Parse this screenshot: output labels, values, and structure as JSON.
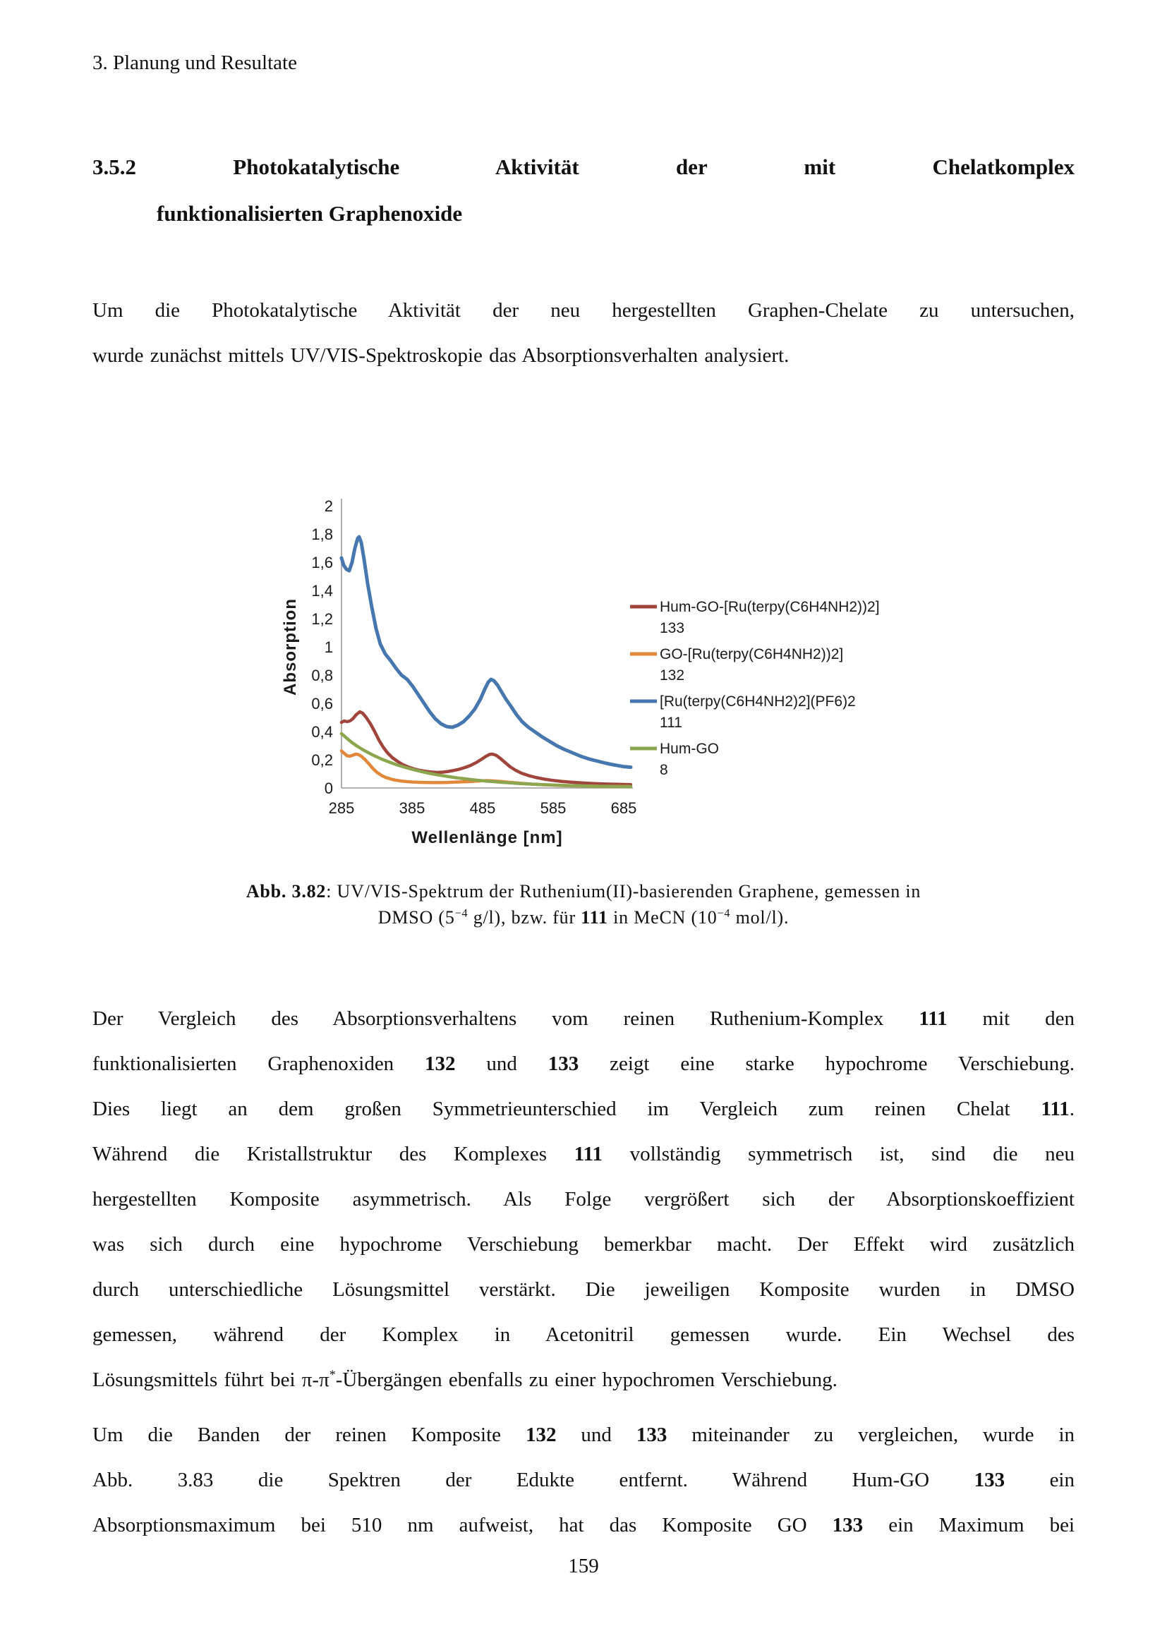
{
  "header": {
    "text": "3. Planung und Resultate"
  },
  "heading": {
    "line1": "3.5.2 Photokatalytische Aktivität der mit Chelatkomplex",
    "line2": "funktionalisierten Graphenoxide"
  },
  "intro": {
    "lines": [
      "Um die Photokatalytische Aktivität der neu hergestellten Graphen-Chelate zu untersuchen,",
      "wurde zunächst mittels UV/VIS-Spektroskopie das Absorptionsverhalten analysiert."
    ]
  },
  "caption": {
    "lines": [
      "**Abb. 3.82**: UV/VIS-Spektrum der Ruthenium(II)-basierenden Graphene, gemessen in",
      "DMSO (5^−4^ g/l), bzw. für **111** in MeCN (10^−4^ mol/l)."
    ]
  },
  "para1": {
    "lines": [
      "Der Vergleich des Absorptionsverhaltens vom reinen Ruthenium-Komplex **111**  mit  den",
      "funktionalisierten Graphenoxiden **132** und **133** zeigt eine starke hypochrome Verschiebung.",
      "Dies liegt an dem großen Symmetrieunterschied im Vergleich zum reinen Chelat **111**.",
      "Während die Kristallstruktur des Komplexes **111** vollständig symmetrisch ist, sind die neu",
      "hergestellten Komposite asymmetrisch. Als Folge vergrößert sich der Absorptionskoeffizient",
      "was sich durch eine hypochrome Verschiebung bemerkbar macht. Der Effekt wird zusätzlich",
      "durch unterschiedliche Lösungsmittel verstärkt. Die jeweiligen Komposite wurden in DMSO",
      "gemessen, während der Komplex in Acetonitril gemessen wurde. Ein Wechsel des",
      "Lösungsmittels führt bei π-π^*^-Übergängen ebenfalls zu einer hypochromen Verschiebung."
    ]
  },
  "para2": {
    "lines": [
      "Um die Banden der reinen Komposite **132** und **133** miteinander zu vergleichen, wurde in",
      "Abb. 3.83 die Spektren der Edukte entfernt. Während Hum-GO **133** ein",
      "Absorptionsmaximum bei 510 nm aufweist, hat das Komposite GO **133** ein Maximum bei"
    ]
  },
  "footer": {
    "page_number": "159"
  },
  "chart_data": {
    "type": "line",
    "title": "",
    "xlabel": "Wellenlänge [nm]",
    "ylabel": "Absorption",
    "xlim": [
      285,
      695
    ],
    "ylim": [
      0,
      2
    ],
    "grid": false,
    "legend_position": "right",
    "axis_color": "#9a9a9a",
    "xticks": [
      285,
      385,
      485,
      585,
      685
    ],
    "yticks": [
      {
        "value": 0,
        "label": "0"
      },
      {
        "value": 0.2,
        "label": "0,2"
      },
      {
        "value": 0.4,
        "label": "0,4"
      },
      {
        "value": 0.6,
        "label": "0,6"
      },
      {
        "value": 0.8,
        "label": "0,8"
      },
      {
        "value": 1,
        "label": "1"
      },
      {
        "value": 1.2,
        "label": "1,2"
      },
      {
        "value": 1.4,
        "label": "1,4"
      },
      {
        "value": 1.6,
        "label": "1,6"
      },
      {
        "value": 1.8,
        "label": "1,8"
      },
      {
        "value": 2,
        "label": "2"
      }
    ],
    "series": [
      {
        "name": "Hum-GO-[Ru(terpy(C6H4NH2))2]",
        "label2": "133",
        "color": "#A0453C",
        "width": 4.5,
        "points": [
          [
            285,
            0.465
          ],
          [
            289,
            0.475
          ],
          [
            293,
            0.47
          ],
          [
            297,
            0.475
          ],
          [
            301,
            0.49
          ],
          [
            306,
            0.52
          ],
          [
            311,
            0.54
          ],
          [
            315,
            0.53
          ],
          [
            320,
            0.5
          ],
          [
            326,
            0.455
          ],
          [
            332,
            0.4
          ],
          [
            338,
            0.34
          ],
          [
            344,
            0.29
          ],
          [
            350,
            0.25
          ],
          [
            357,
            0.215
          ],
          [
            364,
            0.19
          ],
          [
            372,
            0.165
          ],
          [
            380,
            0.148
          ],
          [
            388,
            0.135
          ],
          [
            396,
            0.125
          ],
          [
            404,
            0.118
          ],
          [
            412,
            0.113
          ],
          [
            420,
            0.11
          ],
          [
            428,
            0.112
          ],
          [
            436,
            0.117
          ],
          [
            444,
            0.124
          ],
          [
            452,
            0.133
          ],
          [
            460,
            0.145
          ],
          [
            468,
            0.16
          ],
          [
            476,
            0.18
          ],
          [
            484,
            0.205
          ],
          [
            490,
            0.225
          ],
          [
            495,
            0.238
          ],
          [
            499,
            0.24
          ],
          [
            504,
            0.232
          ],
          [
            510,
            0.21
          ],
          [
            517,
            0.18
          ],
          [
            524,
            0.15
          ],
          [
            532,
            0.125
          ],
          [
            540,
            0.105
          ],
          [
            550,
            0.088
          ],
          [
            560,
            0.075
          ],
          [
            572,
            0.063
          ],
          [
            584,
            0.054
          ],
          [
            596,
            0.047
          ],
          [
            610,
            0.041
          ],
          [
            625,
            0.036
          ],
          [
            640,
            0.032
          ],
          [
            655,
            0.029
          ],
          [
            670,
            0.027
          ],
          [
            685,
            0.025
          ],
          [
            695,
            0.024
          ]
        ]
      },
      {
        "name": "GO-[Ru(terpy(C6H4NH2))2]",
        "label2": "132",
        "color": "#E2883B",
        "width": 4.5,
        "points": [
          [
            285,
            0.262
          ],
          [
            289,
            0.245
          ],
          [
            293,
            0.228
          ],
          [
            297,
            0.225
          ],
          [
            301,
            0.232
          ],
          [
            305,
            0.24
          ],
          [
            309,
            0.237
          ],
          [
            313,
            0.225
          ],
          [
            318,
            0.203
          ],
          [
            324,
            0.17
          ],
          [
            330,
            0.135
          ],
          [
            336,
            0.108
          ],
          [
            342,
            0.088
          ],
          [
            348,
            0.074
          ],
          [
            355,
            0.063
          ],
          [
            362,
            0.055
          ],
          [
            370,
            0.049
          ],
          [
            378,
            0.045
          ],
          [
            386,
            0.042
          ],
          [
            395,
            0.04
          ],
          [
            405,
            0.039
          ],
          [
            415,
            0.038
          ],
          [
            425,
            0.038
          ],
          [
            435,
            0.039
          ],
          [
            445,
            0.041
          ],
          [
            455,
            0.043
          ],
          [
            465,
            0.045
          ],
          [
            475,
            0.048
          ],
          [
            485,
            0.051
          ],
          [
            492,
            0.052
          ],
          [
            500,
            0.05
          ],
          [
            510,
            0.046
          ],
          [
            520,
            0.041
          ],
          [
            532,
            0.036
          ],
          [
            544,
            0.031
          ],
          [
            556,
            0.027
          ],
          [
            570,
            0.023
          ],
          [
            584,
            0.02
          ],
          [
            600,
            0.017
          ],
          [
            616,
            0.015
          ],
          [
            632,
            0.013
          ],
          [
            650,
            0.011
          ],
          [
            668,
            0.01
          ],
          [
            685,
            0.01
          ],
          [
            695,
            0.01
          ]
        ]
      },
      {
        "name": "[Ru(terpy(C6H4NH2)2](PF6)2",
        "label2": "111",
        "color": "#4677AE",
        "width": 5,
        "points": [
          [
            285,
            1.63
          ],
          [
            288,
            1.58
          ],
          [
            292,
            1.55
          ],
          [
            296,
            1.54
          ],
          [
            300,
            1.6
          ],
          [
            304,
            1.7
          ],
          [
            308,
            1.77
          ],
          [
            310,
            1.78
          ],
          [
            313,
            1.74
          ],
          [
            317,
            1.62
          ],
          [
            322,
            1.45
          ],
          [
            328,
            1.28
          ],
          [
            334,
            1.13
          ],
          [
            340,
            1.02
          ],
          [
            347,
            0.95
          ],
          [
            355,
            0.9
          ],
          [
            362,
            0.85
          ],
          [
            370,
            0.8
          ],
          [
            378,
            0.77
          ],
          [
            386,
            0.72
          ],
          [
            394,
            0.66
          ],
          [
            402,
            0.6
          ],
          [
            410,
            0.54
          ],
          [
            418,
            0.49
          ],
          [
            426,
            0.455
          ],
          [
            434,
            0.435
          ],
          [
            442,
            0.43
          ],
          [
            450,
            0.445
          ],
          [
            458,
            0.47
          ],
          [
            466,
            0.51
          ],
          [
            474,
            0.56
          ],
          [
            482,
            0.63
          ],
          [
            488,
            0.7
          ],
          [
            493,
            0.75
          ],
          [
            497,
            0.77
          ],
          [
            501,
            0.76
          ],
          [
            506,
            0.73
          ],
          [
            512,
            0.68
          ],
          [
            518,
            0.63
          ],
          [
            525,
            0.58
          ],
          [
            533,
            0.52
          ],
          [
            541,
            0.47
          ],
          [
            550,
            0.43
          ],
          [
            560,
            0.395
          ],
          [
            570,
            0.36
          ],
          [
            580,
            0.33
          ],
          [
            590,
            0.3
          ],
          [
            600,
            0.275
          ],
          [
            612,
            0.25
          ],
          [
            624,
            0.225
          ],
          [
            636,
            0.205
          ],
          [
            648,
            0.19
          ],
          [
            660,
            0.175
          ],
          [
            672,
            0.163
          ],
          [
            684,
            0.152
          ],
          [
            695,
            0.147
          ]
        ]
      },
      {
        "name": "Hum-GO",
        "label2": "8",
        "color": "#8CA64F",
        "width": 4.5,
        "points": [
          [
            285,
            0.385
          ],
          [
            292,
            0.355
          ],
          [
            299,
            0.325
          ],
          [
            306,
            0.3
          ],
          [
            313,
            0.278
          ],
          [
            320,
            0.258
          ],
          [
            328,
            0.237
          ],
          [
            336,
            0.218
          ],
          [
            344,
            0.2
          ],
          [
            352,
            0.185
          ],
          [
            360,
            0.17
          ],
          [
            368,
            0.157
          ],
          [
            376,
            0.145
          ],
          [
            384,
            0.134
          ],
          [
            392,
            0.124
          ],
          [
            400,
            0.114
          ],
          [
            410,
            0.103
          ],
          [
            420,
            0.094
          ],
          [
            430,
            0.086
          ],
          [
            440,
            0.078
          ],
          [
            450,
            0.071
          ],
          [
            460,
            0.065
          ],
          [
            470,
            0.059
          ],
          [
            480,
            0.054
          ],
          [
            490,
            0.049
          ],
          [
            500,
            0.045
          ],
          [
            512,
            0.04
          ],
          [
            524,
            0.036
          ],
          [
            536,
            0.032
          ],
          [
            548,
            0.029
          ],
          [
            560,
            0.026
          ],
          [
            572,
            0.023
          ],
          [
            584,
            0.021
          ],
          [
            596,
            0.019
          ],
          [
            610,
            0.017
          ],
          [
            624,
            0.015
          ],
          [
            638,
            0.013
          ],
          [
            652,
            0.012
          ],
          [
            666,
            0.011
          ],
          [
            680,
            0.01
          ],
          [
            695,
            0.01
          ]
        ]
      }
    ]
  }
}
